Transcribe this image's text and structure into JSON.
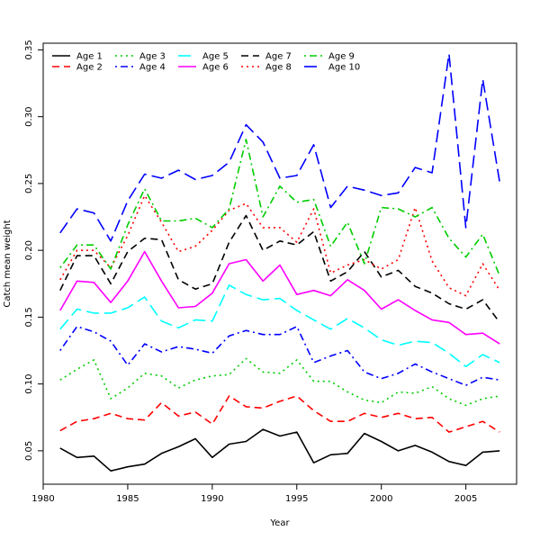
{
  "chart_data": {
    "type": "line",
    "xlabel": "Year",
    "ylabel": "Catch mean weight",
    "xlim": [
      1980,
      2008
    ],
    "ylim": [
      0.025,
      0.355
    ],
    "x_ticks": [
      1980,
      1985,
      1990,
      1995,
      2000,
      2005
    ],
    "y_ticks": [
      0.05,
      0.1,
      0.15,
      0.2,
      0.25,
      0.3,
      0.35
    ],
    "y_tick_labels": [
      "0.05",
      "0.10",
      "0.15",
      "0.20",
      "0.25",
      "0.30",
      "0.35"
    ],
    "grid": false,
    "legend_position": "top-left",
    "x": [
      1981,
      1982,
      1983,
      1984,
      1985,
      1986,
      1987,
      1988,
      1989,
      1990,
      1991,
      1992,
      1993,
      1994,
      1995,
      1996,
      1997,
      1998,
      1999,
      2000,
      2001,
      2002,
      2003,
      2004,
      2005,
      2006,
      2007
    ],
    "series": [
      {
        "name": "Age 1",
        "color": "#000000",
        "dash": "solid",
        "values": [
          0.052,
          0.045,
          0.046,
          0.035,
          0.038,
          0.04,
          0.048,
          0.053,
          0.059,
          0.045,
          0.055,
          0.057,
          0.066,
          0.061,
          0.064,
          0.041,
          0.047,
          0.048,
          0.063,
          0.057,
          0.05,
          0.054,
          0.049,
          0.042,
          0.039,
          0.049,
          0.05
        ]
      },
      {
        "name": "Age 2",
        "color": "#ff0000",
        "dash": "dashed",
        "values": [
          0.065,
          0.072,
          0.074,
          0.078,
          0.074,
          0.073,
          0.086,
          0.076,
          0.079,
          0.07,
          0.091,
          0.083,
          0.082,
          0.087,
          0.091,
          0.08,
          0.072,
          0.072,
          0.078,
          0.075,
          0.078,
          0.074,
          0.075,
          0.064,
          0.068,
          0.072,
          0.064
        ]
      },
      {
        "name": "Age 3",
        "color": "#00cd00",
        "dash": "dotted",
        "values": [
          0.103,
          0.111,
          0.118,
          0.089,
          0.097,
          0.108,
          0.106,
          0.097,
          0.103,
          0.106,
          0.107,
          0.119,
          0.109,
          0.108,
          0.118,
          0.102,
          0.102,
          0.094,
          0.088,
          0.086,
          0.094,
          0.093,
          0.098,
          0.089,
          0.084,
          0.089,
          0.091
        ]
      },
      {
        "name": "Age 4",
        "color": "#0000ff",
        "dash": "dotdash",
        "values": [
          0.125,
          0.143,
          0.139,
          0.132,
          0.114,
          0.13,
          0.124,
          0.128,
          0.126,
          0.123,
          0.136,
          0.14,
          0.137,
          0.137,
          0.143,
          0.116,
          0.121,
          0.125,
          0.109,
          0.104,
          0.108,
          0.115,
          0.109,
          0.104,
          0.099,
          0.105,
          0.103
        ]
      },
      {
        "name": "Age 5",
        "color": "#00ffff",
        "dash": "longdash",
        "values": [
          0.141,
          0.156,
          0.153,
          0.153,
          0.157,
          0.165,
          0.147,
          0.142,
          0.148,
          0.147,
          0.174,
          0.167,
          0.163,
          0.164,
          0.155,
          0.148,
          0.141,
          0.149,
          0.142,
          0.133,
          0.129,
          0.132,
          0.131,
          0.123,
          0.113,
          0.122,
          0.116
        ]
      },
      {
        "name": "Age 6",
        "color": "#ff00ff",
        "dash": "solid",
        "values": [
          0.155,
          0.177,
          0.176,
          0.161,
          0.177,
          0.199,
          0.177,
          0.157,
          0.158,
          0.168,
          0.19,
          0.193,
          0.177,
          0.189,
          0.167,
          0.17,
          0.166,
          0.178,
          0.17,
          0.156,
          0.163,
          0.155,
          0.148,
          0.146,
          0.137,
          0.138,
          0.13
        ]
      },
      {
        "name": "Age 7",
        "color": "#000000",
        "dash": "dashed",
        "values": [
          0.17,
          0.196,
          0.196,
          0.175,
          0.199,
          0.209,
          0.208,
          0.178,
          0.171,
          0.175,
          0.206,
          0.226,
          0.2,
          0.207,
          0.204,
          0.214,
          0.177,
          0.184,
          0.199,
          0.18,
          0.185,
          0.173,
          0.168,
          0.16,
          0.156,
          0.163,
          0.146
        ]
      },
      {
        "name": "Age 8",
        "color": "#ff0000",
        "dash": "dotted",
        "values": [
          0.178,
          0.2,
          0.2,
          0.187,
          0.211,
          0.241,
          0.221,
          0.199,
          0.203,
          0.215,
          0.23,
          0.235,
          0.217,
          0.217,
          0.206,
          0.231,
          0.183,
          0.189,
          0.193,
          0.186,
          0.193,
          0.232,
          0.192,
          0.172,
          0.166,
          0.19,
          0.17
        ]
      },
      {
        "name": "Age 9",
        "color": "#00cd00",
        "dash": "dotdash",
        "values": [
          0.187,
          0.204,
          0.204,
          0.186,
          0.219,
          0.246,
          0.222,
          0.222,
          0.224,
          0.217,
          0.231,
          0.283,
          0.225,
          0.248,
          0.236,
          0.238,
          0.203,
          0.221,
          0.19,
          0.232,
          0.231,
          0.225,
          0.232,
          0.209,
          0.195,
          0.212,
          0.181
        ]
      },
      {
        "name": "Age 10",
        "color": "#0000ff",
        "dash": "longdash",
        "values": [
          0.213,
          0.231,
          0.228,
          0.207,
          0.237,
          0.257,
          0.254,
          0.26,
          0.253,
          0.256,
          0.266,
          0.294,
          0.281,
          0.254,
          0.256,
          0.279,
          0.232,
          0.248,
          0.245,
          0.241,
          0.243,
          0.262,
          0.258,
          0.347,
          0.217,
          0.328,
          0.251
        ]
      }
    ]
  }
}
